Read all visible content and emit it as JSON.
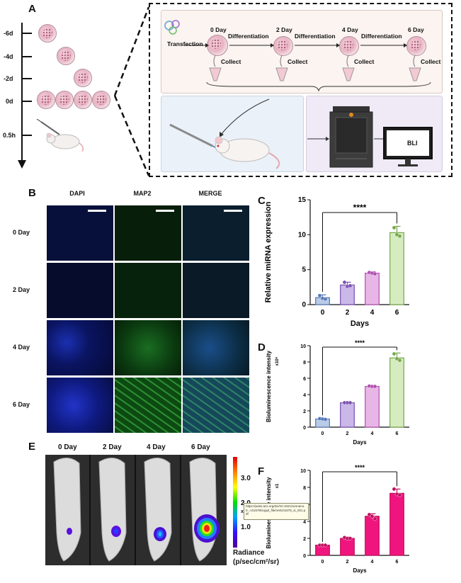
{
  "panels": {
    "a": "A",
    "b": "B",
    "c": "C",
    "d": "D",
    "e": "E",
    "f": "F"
  },
  "panel_a": {
    "timeline": [
      "-6d",
      "-4d",
      "-2d",
      "0d",
      "0.5h"
    ],
    "flow_steps": [
      "0 Day",
      "2 Day",
      "4 Day",
      "6 Day"
    ],
    "transfection": "Transfection",
    "differentiation": "Differentiation",
    "collect": "Collect",
    "bli": "BLI"
  },
  "panel_b": {
    "columns": [
      "DAPI",
      "MAP2",
      "MERGE"
    ],
    "rows": [
      "0 Day",
      "2 Day",
      "4 Day",
      "6 Day"
    ],
    "colors": {
      "dapi": "#0a1a6a",
      "map2": "#0c5a12",
      "merge": "#0d3a4a"
    }
  },
  "panel_e": {
    "labels": [
      "0 Day",
      "2 Day",
      "4 Day",
      "6 Day"
    ],
    "colorbar_ticks": [
      "3.0",
      "2.0",
      "1.0"
    ],
    "colorbar_unit": "x10",
    "radiance_label": "Radiance",
    "radiance_unit": "(p/sec/cm²/sr)",
    "tooltip": "https://pubs.acs.org/doi/10.1021/acsnano.0...c01578/suppl_file/nn0c01578_si_001.pdf"
  },
  "chart_data": [
    {
      "id": "C",
      "type": "bar",
      "categories": [
        "0",
        "2",
        "4",
        "6"
      ],
      "values": [
        1.0,
        2.8,
        4.5,
        10.3
      ],
      "errors": [
        0.4,
        0.4,
        0.2,
        0.9
      ],
      "points": [
        [
          1.3,
          0.9,
          0.8
        ],
        [
          3.2,
          2.6,
          2.7
        ],
        [
          4.6,
          4.5,
          4.4
        ],
        [
          11.0,
          10.0,
          9.8
        ]
      ],
      "xlabel": "Days",
      "ylabel": "Relative miRNA expression",
      "ylim": [
        0,
        15
      ],
      "yticks": [
        0,
        5,
        10,
        15
      ],
      "significance": "****",
      "fill": [
        "#b9cbe6",
        "#c9b8e8",
        "#e8b6e6",
        "#d6ecc0"
      ],
      "edge": [
        "#5577b8",
        "#7a4fb0",
        "#b04fb0",
        "#74a84a"
      ]
    },
    {
      "id": "D",
      "type": "bar",
      "categories": [
        "0",
        "2",
        "4",
        "6"
      ],
      "values": [
        1.0,
        3.0,
        5.0,
        8.5
      ],
      "errors": [
        0.1,
        0.05,
        0.05,
        0.6
      ],
      "points": [
        [
          1.05,
          1.0,
          0.95
        ],
        [
          3.0,
          3.0,
          3.0
        ],
        [
          5.05,
          5.0,
          5.0
        ],
        [
          9.0,
          8.4,
          8.2
        ]
      ],
      "xlabel": "Days",
      "ylabel": "Bioluminescence intensity",
      "ylabel2": "x10⁶",
      "ylim": [
        0,
        10
      ],
      "yticks": [
        0,
        2,
        4,
        6,
        8,
        10
      ],
      "significance": "****",
      "fill": [
        "#b9cbe6",
        "#c9b8e8",
        "#e8b6e6",
        "#d6ecc0"
      ],
      "edge": [
        "#5577b8",
        "#7a4fb0",
        "#b04fb0",
        "#74a84a"
      ]
    },
    {
      "id": "F",
      "type": "bar",
      "categories": [
        "0",
        "2",
        "4",
        "6"
      ],
      "values": [
        1.2,
        2.0,
        4.6,
        7.3
      ],
      "errors": [
        0.05,
        0.15,
        0.3,
        0.5
      ],
      "points": [
        [
          1.2,
          1.2,
          1.2
        ],
        [
          2.1,
          2.0,
          2.0
        ],
        [
          4.8,
          4.6,
          4.3
        ],
        [
          7.8,
          7.2,
          7.1
        ]
      ],
      "xlabel": "Days",
      "ylabel": "Bioluminescence intensity",
      "ylabel2": "x1",
      "ylim": [
        0,
        10
      ],
      "yticks": [
        0,
        2,
        4,
        6,
        8,
        10
      ],
      "significance": "****",
      "fill": [
        "#f0157e",
        "#f0157e",
        "#f0157e",
        "#f0157e"
      ],
      "edge": [
        "#c0105e",
        "#c0105e",
        "#c0105e",
        "#c0105e"
      ]
    }
  ]
}
